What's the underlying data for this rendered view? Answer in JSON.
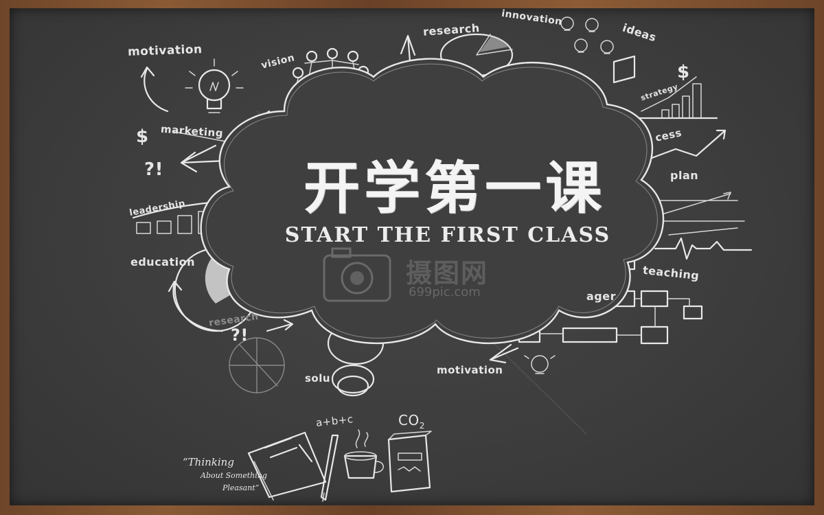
{
  "title_cn": "开学第一课",
  "title_en": "START THE FIRST CLASS",
  "watermark": {
    "brand": "摄图网",
    "url": "699pic.com"
  },
  "doodle_words": {
    "motivation_top": "motivation",
    "vision": "vision",
    "research": "research",
    "innovation": "innovation",
    "ideas": "ideas",
    "strategy": "strategy",
    "success": "cess",
    "plan": "plan",
    "marketing": "marketing",
    "leadership": "leadership",
    "education": "education",
    "teaching": "teaching",
    "manager": "ager",
    "motivation_bottom": "motivation",
    "research_faint": "research",
    "solution": "solu",
    "question_1": "?!",
    "question_2": "?!",
    "dollar_1": "$",
    "dollar_2": "$"
  },
  "bottom": {
    "formula": "a+b+c",
    "co2_main": "CO",
    "co2_sub": "2",
    "quote_line1": "“Thinking",
    "quote_line2": "About Something",
    "quote_line3": "Pleasant”"
  },
  "colors": {
    "board": "#3d3d3d",
    "frame": "#7a4d2e",
    "chalk": "#e8e8e8"
  },
  "icons": [
    "lightbulb-icon",
    "people-chain-icon",
    "pie-chart-icon",
    "bar-chart-icon",
    "flowchart-icon",
    "open-book-icon",
    "pencil-icon",
    "coffee-cup-icon",
    "box-icon",
    "camera-icon"
  ]
}
